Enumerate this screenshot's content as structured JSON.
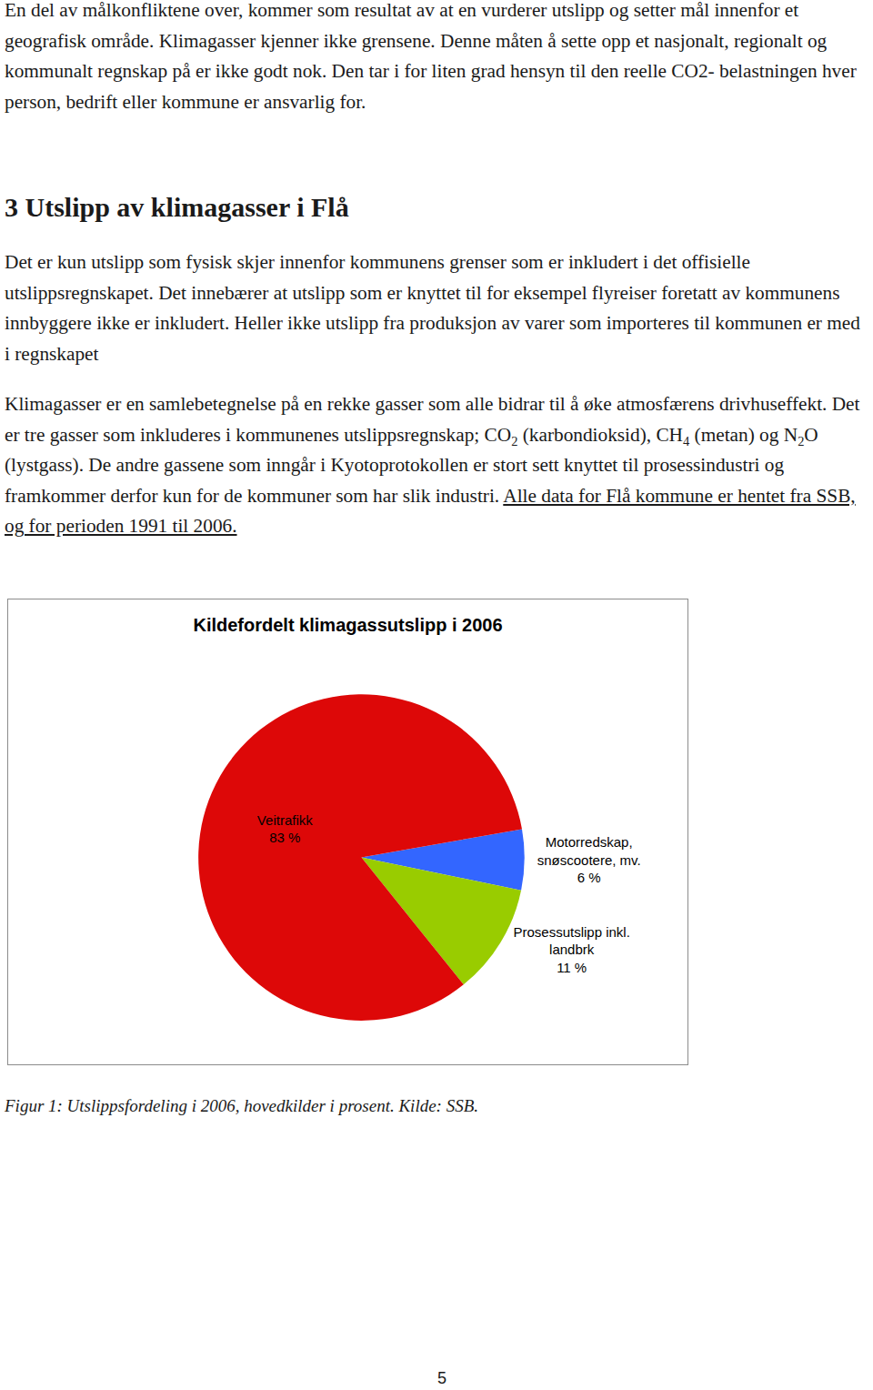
{
  "intro": [
    "En del av målkonfliktene over, kommer som resultat av at en vurderer utslipp og setter mål innenfor et geografisk område. Klimagasser kjenner ikke grensene. Denne måten å sette opp et nasjonalt, regionalt og kommunalt regnskap på er ikke godt nok. Den tar i for liten grad hensyn til den reelle CO2- belastningen hver person, bedrift eller kommune er ansvarlig for."
  ],
  "heading": "3 Utslipp av klimagasser i Flå",
  "paragraphs": [
    [
      "Det er kun utslipp som fysisk skjer innenfor kommunens grenser som er inkludert i det offisielle utslippsregnskapet. Det innebærer at utslipp som er knyttet til for eksempel flyreiser foretatt av kommunens innbyggere ikke er inkludert. Heller ikke utslipp fra produksjon av varer som importeres til kommunen er med i regnskapet"
    ],
    [
      "Klimagasser er en samlebetegnelse på en rekke gasser som alle bidrar til å øke atmosfærens drivhuseffekt. Det er tre gasser som inkluderes i kommunenes utslippsregnskap; CO",
      {
        "text": "2",
        "sub": true
      },
      " (karbondioksid), CH",
      {
        "text": "4",
        "sub": true
      },
      " (metan) og N",
      {
        "text": "2",
        "sub": true
      },
      "O (lystgass). De andre gassene som inngår i Kyotoprotokollen er stort sett knyttet til prosessindustri og framkommer derfor kun for de kommuner som har slik industri. ",
      {
        "text": "Alle data for Flå kommune er hentet fra SSB, og for perioden 1991 til 2006.",
        "underline": true
      }
    ]
  ],
  "chart_data": {
    "type": "pie",
    "title": "Kildefordelt klimagassutslipp i 2006",
    "categories": [
      "Motorredskap, snøscootere, mv.",
      "Prosessutslipp inkl. landbrk",
      "Veitrafikk"
    ],
    "values": [
      6,
      11,
      83
    ],
    "value_labels": [
      "6 %",
      "11 %",
      "83 %"
    ],
    "colors": [
      "#3366ff",
      "#99cc00",
      "#dd0808"
    ],
    "data_labels": true
  },
  "caption": "Figur 1: Utslippsfordeling i 2006, hovedkilder i prosent. Kilde: SSB.",
  "page_number": "5"
}
